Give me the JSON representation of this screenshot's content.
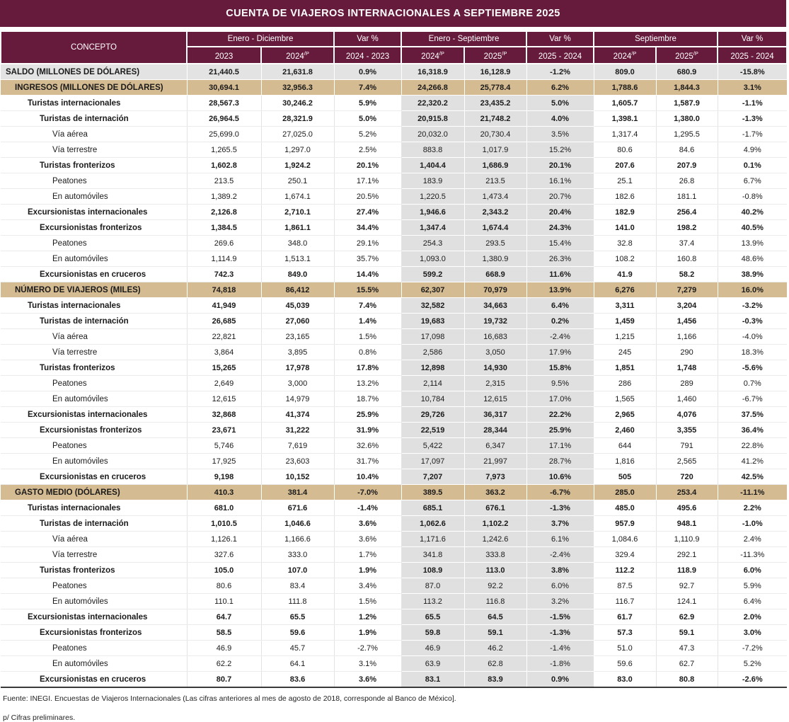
{
  "title": "CUENTA DE VIAJEROS INTERNACIONALES A SEPTIEMBRE 2025",
  "theme": {
    "maroon": "#671B3C",
    "tan_section": "#D5BB92",
    "band_gray": "#E0E0E0",
    "saldo_gray": "#E3E3E3"
  },
  "header": {
    "concepto": "CONCEPTO",
    "groups": [
      {
        "label": "Enero - Diciembre"
      },
      {
        "label": "Var %"
      },
      {
        "label": "Enero - Septiembre"
      },
      {
        "label": "Var %"
      },
      {
        "label": "Septiembre"
      },
      {
        "label": "Var %"
      }
    ],
    "cols": [
      {
        "year": "2023",
        "sup": ""
      },
      {
        "year": "2024",
        "sup": "/P"
      },
      {
        "year": "2024 - 2023",
        "sup": ""
      },
      {
        "year": "2024",
        "sup": "/P"
      },
      {
        "year": "2025",
        "sup": "/P"
      },
      {
        "year": "2025 - 2024",
        "sup": ""
      },
      {
        "year": "2024",
        "sup": "/P"
      },
      {
        "year": "2025",
        "sup": "/P"
      },
      {
        "year": "2025 - 2024",
        "sup": ""
      }
    ]
  },
  "rows": [
    {
      "label": "SALDO (MILLONES DE DÓLARES)",
      "level": 0,
      "bold": true,
      "style": "saldo",
      "values": [
        "21,440.5",
        "21,631.8",
        "0.9%",
        "16,318.9",
        "16,128.9",
        "-1.2%",
        "809.0",
        "680.9",
        "-15.8%"
      ]
    },
    {
      "label": "INGRESOS (MILLONES DE DÓLARES)",
      "level": 1,
      "bold": true,
      "style": "section",
      "values": [
        "30,694.1",
        "32,956.3",
        "7.4%",
        "24,266.8",
        "25,778.4",
        "6.2%",
        "1,788.6",
        "1,844.3",
        "3.1%"
      ]
    },
    {
      "label": "Turistas internacionales",
      "level": 2,
      "bold": true,
      "style": "",
      "values": [
        "28,567.3",
        "30,246.2",
        "5.9%",
        "22,320.2",
        "23,435.2",
        "5.0%",
        "1,605.7",
        "1,587.9",
        "-1.1%"
      ]
    },
    {
      "label": "Turistas de internación",
      "level": 3,
      "bold": true,
      "style": "",
      "values": [
        "26,964.5",
        "28,321.9",
        "5.0%",
        "20,915.8",
        "21,748.2",
        "4.0%",
        "1,398.1",
        "1,380.0",
        "-1.3%"
      ]
    },
    {
      "label": "Vía aérea",
      "level": 4,
      "bold": false,
      "style": "",
      "values": [
        "25,699.0",
        "27,025.0",
        "5.2%",
        "20,032.0",
        "20,730.4",
        "3.5%",
        "1,317.4",
        "1,295.5",
        "-1.7%"
      ]
    },
    {
      "label": "Vía terrestre",
      "level": 4,
      "bold": false,
      "style": "",
      "values": [
        "1,265.5",
        "1,297.0",
        "2.5%",
        "883.8",
        "1,017.9",
        "15.2%",
        "80.6",
        "84.6",
        "4.9%"
      ]
    },
    {
      "label": "Turistas fronterizos",
      "level": 3,
      "bold": true,
      "style": "",
      "values": [
        "1,602.8",
        "1,924.2",
        "20.1%",
        "1,404.4",
        "1,686.9",
        "20.1%",
        "207.6",
        "207.9",
        "0.1%"
      ]
    },
    {
      "label": "Peatones",
      "level": 4,
      "bold": false,
      "style": "",
      "values": [
        "213.5",
        "250.1",
        "17.1%",
        "183.9",
        "213.5",
        "16.1%",
        "25.1",
        "26.8",
        "6.7%"
      ]
    },
    {
      "label": "En automóviles",
      "level": 4,
      "bold": false,
      "style": "",
      "values": [
        "1,389.2",
        "1,674.1",
        "20.5%",
        "1,220.5",
        "1,473.4",
        "20.7%",
        "182.6",
        "181.1",
        "-0.8%"
      ]
    },
    {
      "label": "Excursionistas internacionales",
      "level": 2,
      "bold": true,
      "style": "",
      "values": [
        "2,126.8",
        "2,710.1",
        "27.4%",
        "1,946.6",
        "2,343.2",
        "20.4%",
        "182.9",
        "256.4",
        "40.2%"
      ]
    },
    {
      "label": "Excursionistas fronterizos",
      "level": 3,
      "bold": true,
      "style": "",
      "values": [
        "1,384.5",
        "1,861.1",
        "34.4%",
        "1,347.4",
        "1,674.4",
        "24.3%",
        "141.0",
        "198.2",
        "40.5%"
      ]
    },
    {
      "label": "Peatones",
      "level": 4,
      "bold": false,
      "style": "",
      "values": [
        "269.6",
        "348.0",
        "29.1%",
        "254.3",
        "293.5",
        "15.4%",
        "32.8",
        "37.4",
        "13.9%"
      ]
    },
    {
      "label": "En automóviles",
      "level": 4,
      "bold": false,
      "style": "",
      "values": [
        "1,114.9",
        "1,513.1",
        "35.7%",
        "1,093.0",
        "1,380.9",
        "26.3%",
        "108.2",
        "160.8",
        "48.6%"
      ]
    },
    {
      "label": "Excursionistas en cruceros",
      "level": 3,
      "bold": true,
      "style": "",
      "values": [
        "742.3",
        "849.0",
        "14.4%",
        "599.2",
        "668.9",
        "11.6%",
        "41.9",
        "58.2",
        "38.9%"
      ]
    },
    {
      "label": "NÚMERO DE VIAJEROS (MILES)",
      "level": 1,
      "bold": true,
      "style": "section",
      "values": [
        "74,818",
        "86,412",
        "15.5%",
        "62,307",
        "70,979",
        "13.9%",
        "6,276",
        "7,279",
        "16.0%"
      ]
    },
    {
      "label": "Turistas internacionales",
      "level": 2,
      "bold": true,
      "style": "",
      "values": [
        "41,949",
        "45,039",
        "7.4%",
        "32,582",
        "34,663",
        "6.4%",
        "3,311",
        "3,204",
        "-3.2%"
      ]
    },
    {
      "label": "Turistas de internación",
      "level": 3,
      "bold": true,
      "style": "",
      "values": [
        "26,685",
        "27,060",
        "1.4%",
        "19,683",
        "19,732",
        "0.2%",
        "1,459",
        "1,456",
        "-0.3%"
      ]
    },
    {
      "label": "Vía aérea",
      "level": 4,
      "bold": false,
      "style": "",
      "values": [
        "22,821",
        "23,165",
        "1.5%",
        "17,098",
        "16,683",
        "-2.4%",
        "1,215",
        "1,166",
        "-4.0%"
      ]
    },
    {
      "label": "Vía terrestre",
      "level": 4,
      "bold": false,
      "style": "",
      "values": [
        "3,864",
        "3,895",
        "0.8%",
        "2,586",
        "3,050",
        "17.9%",
        "245",
        "290",
        "18.3%"
      ]
    },
    {
      "label": "Turistas fronterizos",
      "level": 3,
      "bold": true,
      "style": "",
      "values": [
        "15,265",
        "17,978",
        "17.8%",
        "12,898",
        "14,930",
        "15.8%",
        "1,851",
        "1,748",
        "-5.6%"
      ]
    },
    {
      "label": "Peatones",
      "level": 4,
      "bold": false,
      "style": "",
      "values": [
        "2,649",
        "3,000",
        "13.2%",
        "2,114",
        "2,315",
        "9.5%",
        "286",
        "289",
        "0.7%"
      ]
    },
    {
      "label": "En automóviles",
      "level": 4,
      "bold": false,
      "style": "",
      "values": [
        "12,615",
        "14,979",
        "18.7%",
        "10,784",
        "12,615",
        "17.0%",
        "1,565",
        "1,460",
        "-6.7%"
      ]
    },
    {
      "label": "Excursionistas internacionales",
      "level": 2,
      "bold": true,
      "style": "",
      "values": [
        "32,868",
        "41,374",
        "25.9%",
        "29,726",
        "36,317",
        "22.2%",
        "2,965",
        "4,076",
        "37.5%"
      ]
    },
    {
      "label": "Excursionistas fronterizos",
      "level": 3,
      "bold": true,
      "style": "",
      "values": [
        "23,671",
        "31,222",
        "31.9%",
        "22,519",
        "28,344",
        "25.9%",
        "2,460",
        "3,355",
        "36.4%"
      ]
    },
    {
      "label": "Peatones",
      "level": 4,
      "bold": false,
      "style": "",
      "values": [
        "5,746",
        "7,619",
        "32.6%",
        "5,422",
        "6,347",
        "17.1%",
        "644",
        "791",
        "22.8%"
      ]
    },
    {
      "label": "En automóviles",
      "level": 4,
      "bold": false,
      "style": "",
      "values": [
        "17,925",
        "23,603",
        "31.7%",
        "17,097",
        "21,997",
        "28.7%",
        "1,816",
        "2,565",
        "41.2%"
      ]
    },
    {
      "label": "Excursionistas en cruceros",
      "level": 3,
      "bold": true,
      "style": "",
      "values": [
        "9,198",
        "10,152",
        "10.4%",
        "7,207",
        "7,973",
        "10.6%",
        "505",
        "720",
        "42.5%"
      ]
    },
    {
      "label": "GASTO MEDIO (DÓLARES)",
      "level": 1,
      "bold": true,
      "style": "section",
      "values": [
        "410.3",
        "381.4",
        "-7.0%",
        "389.5",
        "363.2",
        "-6.7%",
        "285.0",
        "253.4",
        "-11.1%"
      ]
    },
    {
      "label": "Turistas internacionales",
      "level": 2,
      "bold": true,
      "style": "",
      "values": [
        "681.0",
        "671.6",
        "-1.4%",
        "685.1",
        "676.1",
        "-1.3%",
        "485.0",
        "495.6",
        "2.2%"
      ]
    },
    {
      "label": "Turistas de internación",
      "level": 3,
      "bold": true,
      "style": "",
      "values": [
        "1,010.5",
        "1,046.6",
        "3.6%",
        "1,062.6",
        "1,102.2",
        "3.7%",
        "957.9",
        "948.1",
        "-1.0%"
      ]
    },
    {
      "label": "Vía aérea",
      "level": 4,
      "bold": false,
      "style": "",
      "values": [
        "1,126.1",
        "1,166.6",
        "3.6%",
        "1,171.6",
        "1,242.6",
        "6.1%",
        "1,084.6",
        "1,110.9",
        "2.4%"
      ]
    },
    {
      "label": "Vía terrestre",
      "level": 4,
      "bold": false,
      "style": "",
      "values": [
        "327.6",
        "333.0",
        "1.7%",
        "341.8",
        "333.8",
        "-2.4%",
        "329.4",
        "292.1",
        "-11.3%"
      ]
    },
    {
      "label": "Turistas fronterizos",
      "level": 3,
      "bold": true,
      "style": "",
      "values": [
        "105.0",
        "107.0",
        "1.9%",
        "108.9",
        "113.0",
        "3.8%",
        "112.2",
        "118.9",
        "6.0%"
      ]
    },
    {
      "label": "Peatones",
      "level": 4,
      "bold": false,
      "style": "",
      "values": [
        "80.6",
        "83.4",
        "3.4%",
        "87.0",
        "92.2",
        "6.0%",
        "87.5",
        "92.7",
        "5.9%"
      ]
    },
    {
      "label": "En automóviles",
      "level": 4,
      "bold": false,
      "style": "",
      "values": [
        "110.1",
        "111.8",
        "1.5%",
        "113.2",
        "116.8",
        "3.2%",
        "116.7",
        "124.1",
        "6.4%"
      ]
    },
    {
      "label": "Excursionistas internacionales",
      "level": 2,
      "bold": true,
      "style": "",
      "values": [
        "64.7",
        "65.5",
        "1.2%",
        "65.5",
        "64.5",
        "-1.5%",
        "61.7",
        "62.9",
        "2.0%"
      ]
    },
    {
      "label": "Excursionistas fronterizos",
      "level": 3,
      "bold": true,
      "style": "",
      "values": [
        "58.5",
        "59.6",
        "1.9%",
        "59.8",
        "59.1",
        "-1.3%",
        "57.3",
        "59.1",
        "3.0%"
      ]
    },
    {
      "label": "Peatones",
      "level": 4,
      "bold": false,
      "style": "",
      "values": [
        "46.9",
        "45.7",
        "-2.7%",
        "46.9",
        "46.2",
        "-1.4%",
        "51.0",
        "47.3",
        "-7.2%"
      ]
    },
    {
      "label": "En automóviles",
      "level": 4,
      "bold": false,
      "style": "",
      "values": [
        "62.2",
        "64.1",
        "3.1%",
        "63.9",
        "62.8",
        "-1.8%",
        "59.6",
        "62.7",
        "5.2%"
      ]
    },
    {
      "label": "Excursionistas en cruceros",
      "level": 3,
      "bold": true,
      "style": "",
      "values": [
        "80.7",
        "83.6",
        "3.6%",
        "83.1",
        "83.9",
        "0.9%",
        "83.0",
        "80.8",
        "-2.6%"
      ]
    }
  ],
  "footer": {
    "source": "Fuente: INEGI. Encuestas de Viajeros Internacionales (Las cifras anteriores al mes de agosto de 2018, corresponde al Banco de México].",
    "note": "p/ Cifras preliminares."
  }
}
